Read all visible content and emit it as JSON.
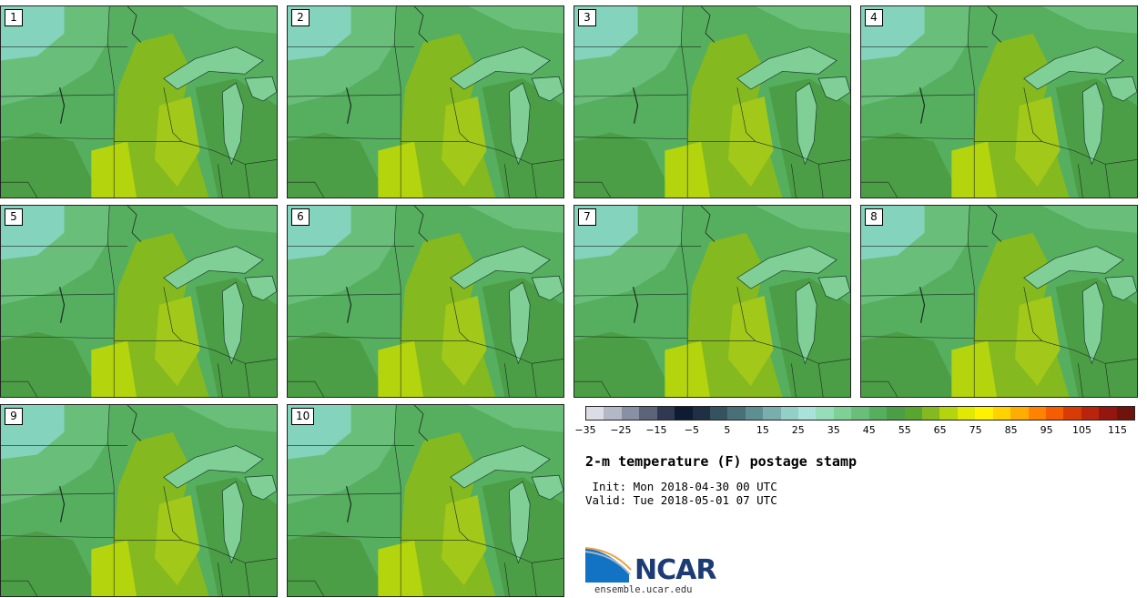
{
  "title": "2-m temperature (F) postage stamp",
  "init_line": " Init: Mon 2018-04-30 00 UTC",
  "valid_line": "Valid: Tue 2018-05-01 07 UTC",
  "logo_text": "NCAR",
  "site": "ensemble.ucar.edu",
  "members": [
    "1",
    "2",
    "3",
    "4",
    "5",
    "6",
    "7",
    "8",
    "9",
    "10"
  ],
  "colorbar": {
    "min": -35,
    "max": 120,
    "step": 5,
    "tick_labels": [
      "−35",
      "−25",
      "−15",
      "−5",
      "5",
      "15",
      "25",
      "35",
      "45",
      "55",
      "65",
      "75",
      "85",
      "95",
      "105",
      "115"
    ],
    "tick_values": [
      -35,
      -25,
      -15,
      -5,
      5,
      15,
      25,
      35,
      45,
      55,
      65,
      75,
      85,
      95,
      105,
      115
    ],
    "colors": [
      "#dcdde4",
      "#b4b8c4",
      "#8a90a3",
      "#5c6479",
      "#2f3a52",
      "#0f1a33",
      "#1f3045",
      "#35525f",
      "#4a7077",
      "#5f8e91",
      "#78aeab",
      "#93cfc5",
      "#a9e2d8",
      "#96ddb9",
      "#7fcf97",
      "#69bf7a",
      "#56ae5f",
      "#4b9e45",
      "#5aa52f",
      "#84b91f",
      "#b4d40e",
      "#e0e803",
      "#fff200",
      "#ffd200",
      "#ffad00",
      "#ff8200",
      "#f55d00",
      "#d83c05",
      "#b9250c",
      "#95160f",
      "#6e140c"
    ]
  },
  "panel_colors": {
    "ocean": "#8ad6c8",
    "lake": "#7fcf97",
    "cold": "#69bf7a",
    "cool": "#56ae5f",
    "mild": "#4b9e45",
    "warm": "#84b91f",
    "warmer": "#a2c81a",
    "hot": "#b4d40e"
  }
}
